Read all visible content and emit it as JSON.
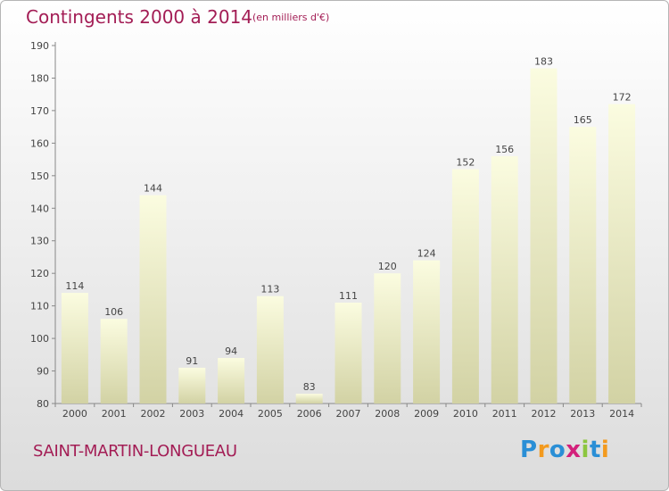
{
  "header": {
    "title": "Contingents 2000 à 2014",
    "subtitle": "(en milliers d'€)"
  },
  "footer": {
    "commune": "SAINT-MARTIN-LONGUEAU",
    "logo_text": "Proxiti"
  },
  "colors": {
    "title": "#a31d55",
    "bar_light": "#fbfce0",
    "bar_dark": "#d2d2a4"
  },
  "chart_data": {
    "type": "bar",
    "title": "Contingents 2000 à 2014",
    "subtitle": "(en milliers d'€)",
    "categories": [
      "2000",
      "2001",
      "2002",
      "2003",
      "2004",
      "2005",
      "2006",
      "2007",
      "2008",
      "2009",
      "2010",
      "2011",
      "2012",
      "2013",
      "2014"
    ],
    "values": [
      114,
      106,
      144,
      91,
      94,
      113,
      83,
      111,
      120,
      124,
      152,
      156,
      183,
      165,
      172
    ],
    "ylim": [
      80,
      190
    ],
    "yticks": [
      80,
      90,
      100,
      110,
      120,
      130,
      140,
      150,
      160,
      170,
      180,
      190
    ],
    "grid": false,
    "data_labels": true
  }
}
